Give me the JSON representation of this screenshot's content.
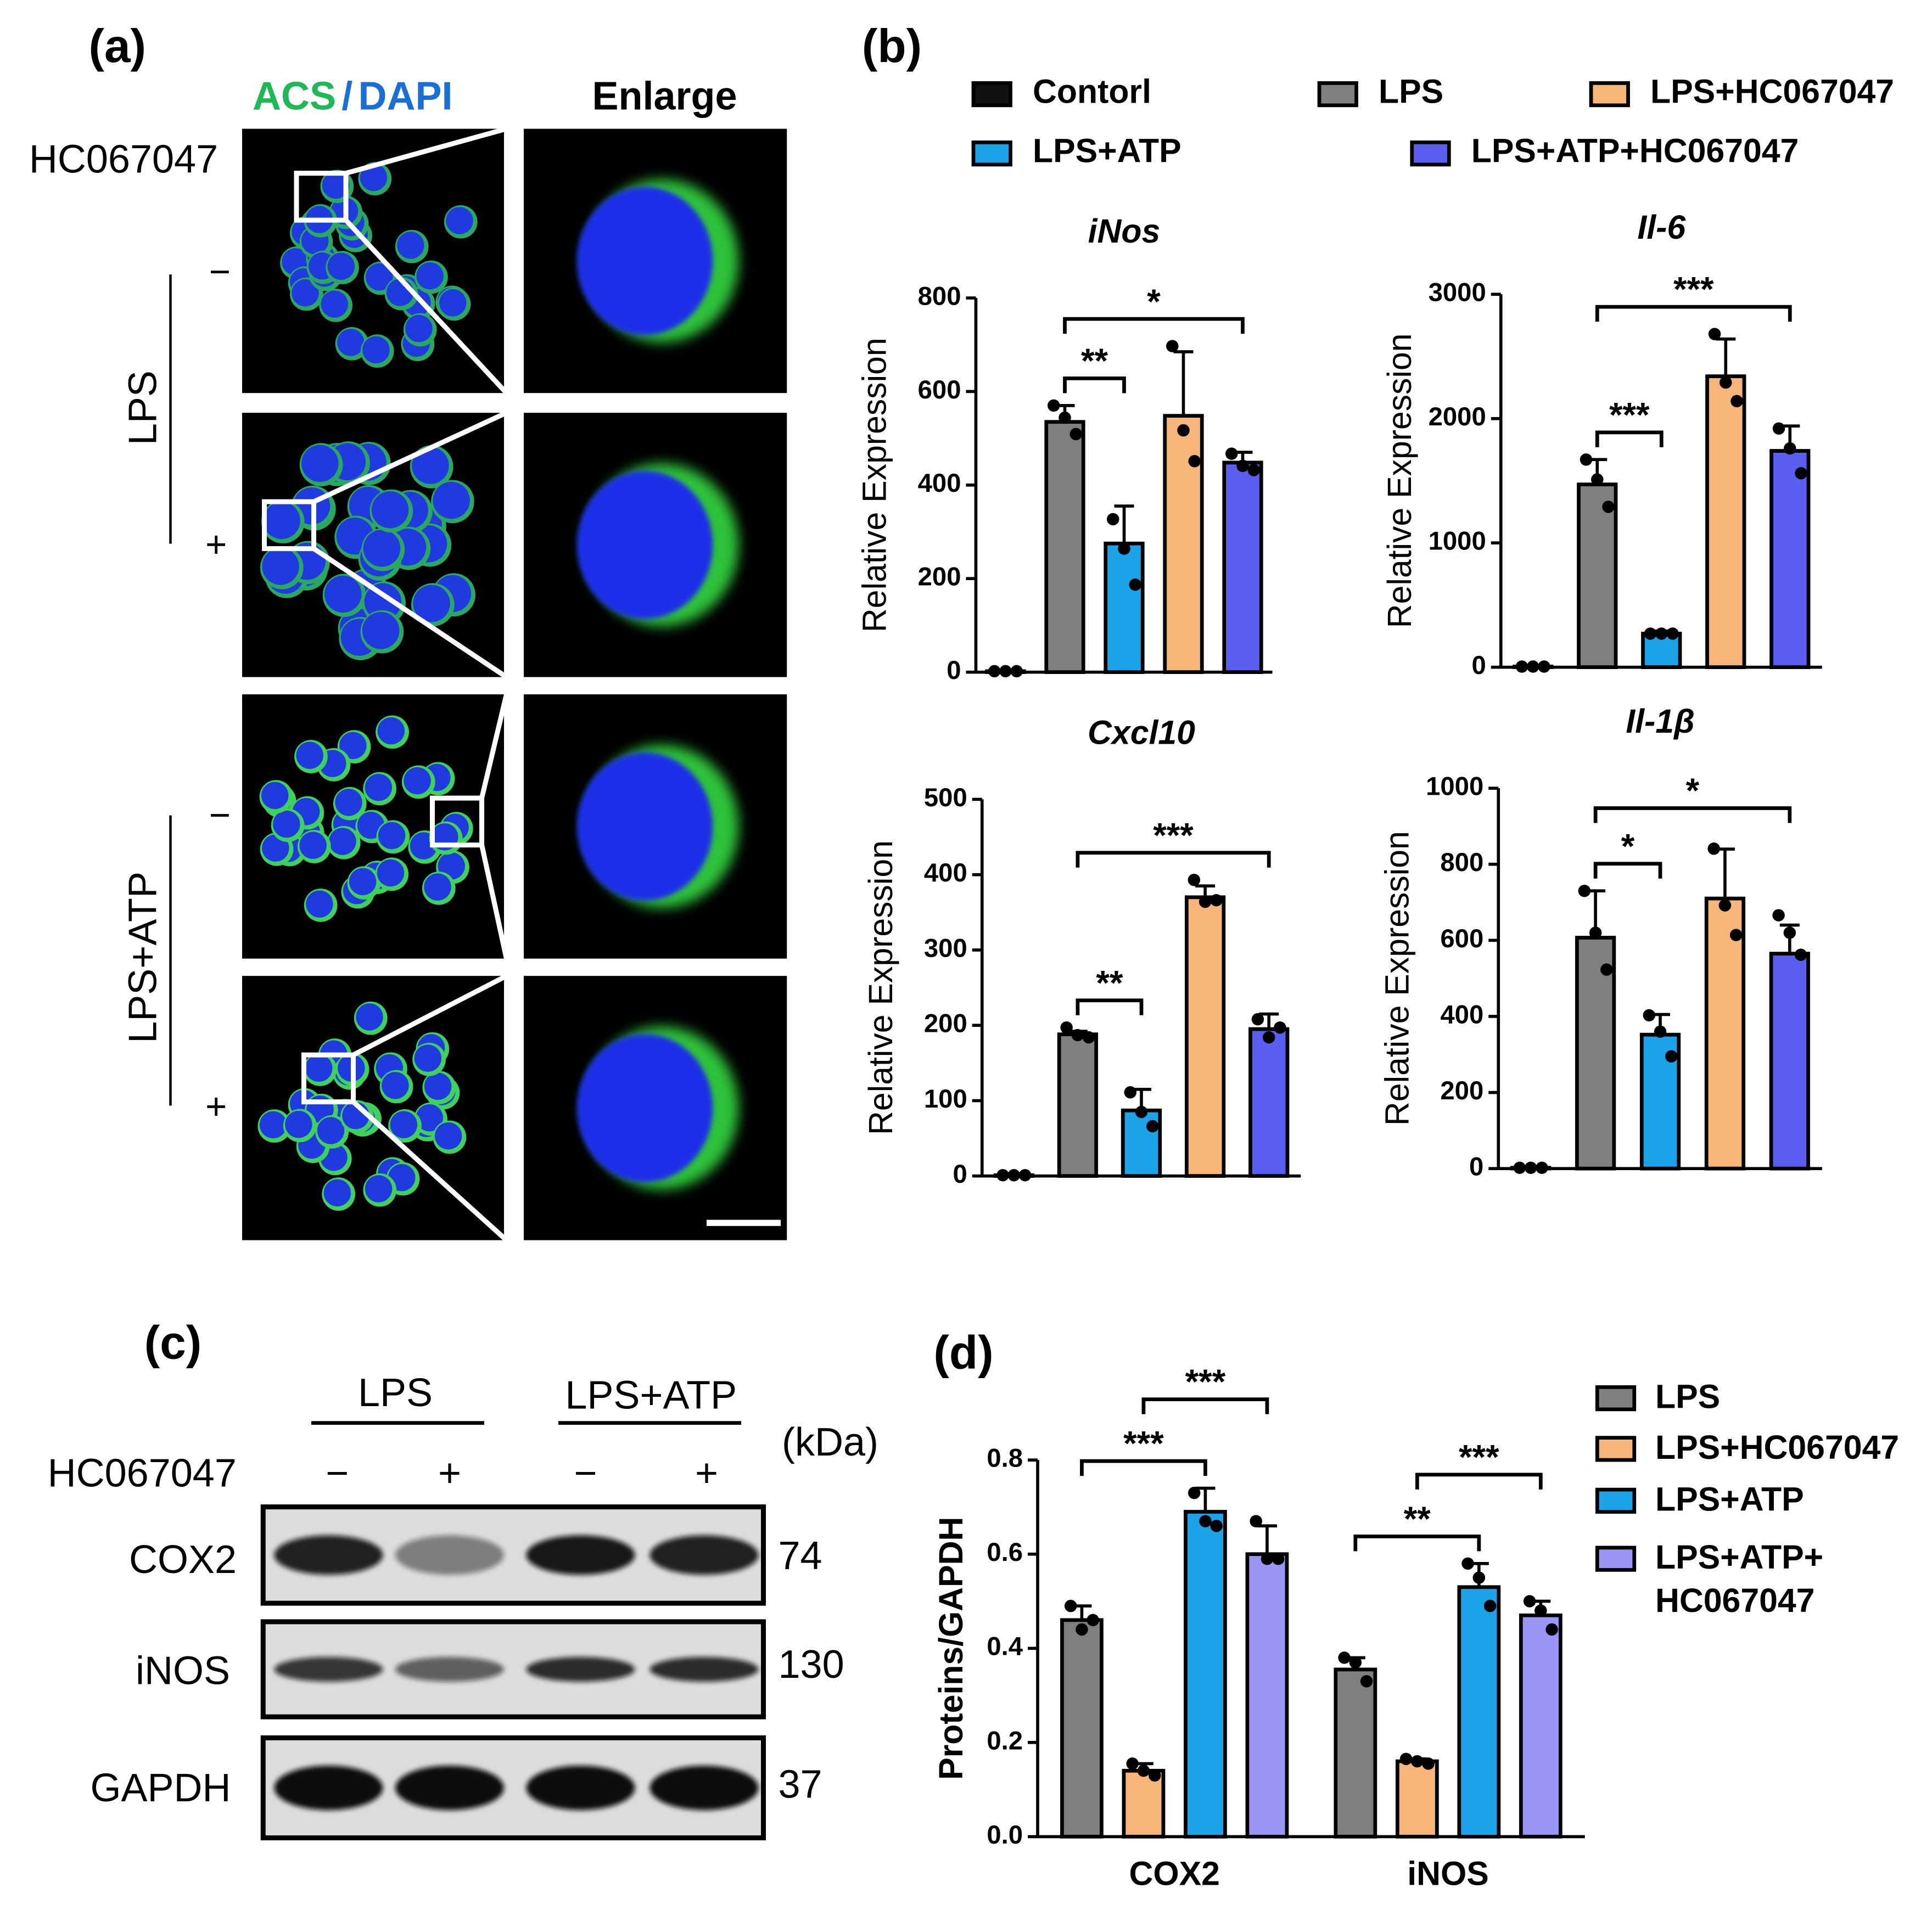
{
  "panel_a": {
    "label": "(a)",
    "stain_acs": "ACS",
    "stain_sep": "/",
    "stain_dapi": "DAPI",
    "enlarge": "Enlarge",
    "treatment": "HC067047",
    "signs": [
      "−",
      "+",
      "−",
      "+"
    ],
    "groups": [
      "LPS",
      "LPS+ATP"
    ]
  },
  "panel_b": {
    "label": "(b)",
    "legend": {
      "names": [
        "Contorl",
        "LPS",
        "LPS+ATP",
        "LPS+HC067047",
        "LPS+ATP+HC067047"
      ],
      "colors": [
        "#111111",
        "#7f7f7f",
        "#1aa3e8",
        "#f7b57a",
        "#5a5ef0"
      ],
      "order": [
        0,
        1,
        3,
        2,
        4
      ]
    }
  },
  "panel_c": {
    "label": "(c)",
    "groups": [
      "LPS",
      "LPS+ATP"
    ],
    "unit": "(kDa)",
    "treatment": "HC067047",
    "signs": [
      "−",
      "+",
      "−",
      "+"
    ],
    "proteins": [
      "COX2",
      "iNOS",
      "GAPDH"
    ],
    "kda": [
      74,
      130,
      37
    ]
  },
  "panel_d": {
    "label": "(d)"
  },
  "chart_data": [
    {
      "type": "bar",
      "title": "iNos",
      "y_label": "Relative Expression",
      "categories": [
        null,
        null,
        null,
        null,
        null
      ],
      "values": [
        2,
        535,
        275,
        548,
        448
      ],
      "errors": [
        null,
        35,
        80,
        137,
        22
      ],
      "points": [
        [
          2,
          2,
          2
        ],
        [
          570,
          544,
          509
        ],
        [
          327,
          264,
          187
        ],
        [
          697,
          517,
          451
        ],
        [
          467,
          441,
          432
        ]
      ],
      "ylim": [
        0,
        800
      ],
      "yticks": [
        0,
        200,
        400,
        600,
        800
      ],
      "annotations": [
        {
          "text": "**",
          "pair": [
            1,
            2
          ]
        },
        {
          "text": "*",
          "pair": [
            1,
            4
          ]
        }
      ]
    },
    {
      "type": "bar",
      "title": "Il-6",
      "y_label": "Relative Expression",
      "categories": [
        null,
        null,
        null,
        null,
        null
      ],
      "values": [
        5,
        1470,
        270,
        2340,
        1740
      ],
      "errors": [
        null,
        200,
        20,
        300,
        200
      ],
      "points": [
        [
          5,
          5,
          5
        ],
        [
          1670,
          1510,
          1290
        ],
        [
          270,
          270,
          270
        ],
        [
          2680,
          2290,
          2140
        ],
        [
          1920,
          1760,
          1560
        ]
      ],
      "ylim": [
        0,
        3000
      ],
      "yticks": [
        0,
        1000,
        2000,
        3000
      ],
      "annotations": [
        {
          "text": "***",
          "pair": [
            1,
            2
          ]
        },
        {
          "text": "***",
          "pair": [
            1,
            4
          ]
        }
      ]
    },
    {
      "type": "bar",
      "title": "Cxcl10",
      "y_label": "Relative Expression",
      "categories": [
        null,
        null,
        null,
        null,
        null
      ],
      "values": [
        1,
        188,
        87,
        370,
        195
      ],
      "errors": [
        null,
        4,
        28,
        15,
        20
      ],
      "points": [
        [
          1,
          1,
          1
        ],
        [
          197,
          187,
          184
        ],
        [
          111,
          85,
          66
        ],
        [
          393,
          364,
          366
        ],
        [
          208,
          184,
          197
        ]
      ],
      "ylim": [
        0,
        500
      ],
      "yticks": [
        0,
        100,
        200,
        300,
        400,
        500
      ],
      "annotations": [
        {
          "text": "**",
          "pair": [
            1,
            2
          ]
        },
        {
          "text": "***",
          "pair": [
            1,
            4
          ]
        }
      ]
    },
    {
      "type": "bar",
      "title": "Il-1β",
      "y_label": "Relative Expression",
      "categories": [
        null,
        null,
        null,
        null,
        null
      ],
      "values": [
        2,
        607,
        352,
        710,
        565
      ],
      "errors": [
        null,
        123,
        53,
        130,
        75
      ],
      "points": [
        [
          2,
          2,
          2
        ],
        [
          730,
          620,
          523
        ],
        [
          403,
          360,
          295
        ],
        [
          841,
          692,
          614
        ],
        [
          666,
          620,
          562
        ]
      ],
      "ylim": [
        0,
        1000
      ],
      "yticks": [
        0,
        200,
        400,
        600,
        800,
        1000
      ],
      "annotations": [
        {
          "text": "*",
          "pair": [
            1,
            2
          ]
        },
        {
          "text": "*",
          "pair": [
            1,
            4
          ]
        }
      ]
    },
    {
      "type": "grouped_bar",
      "y_label": "Proteins/GAPDH",
      "categories": [
        "COX2",
        "iNOS"
      ],
      "series": [
        {
          "name": "LPS",
          "color": "#7f7f7f",
          "values": [
            0.46,
            0.355
          ],
          "errors": [
            0.03,
            0.025
          ],
          "points": [
            [
              0.49,
              0.44,
              0.46
            ],
            [
              0.38,
              0.37,
              0.33
            ]
          ]
        },
        {
          "name": "LPS+HC067047",
          "color": "#f7b57a",
          "values": [
            0.14,
            0.16
          ],
          "errors": [
            0.015,
            0.005
          ],
          "points": [
            [
              0.155,
              0.14,
              0.13
            ],
            [
              0.165,
              0.16,
              0.155
            ]
          ]
        },
        {
          "name": "LPS+ATP",
          "color": "#1aa3e8",
          "values": [
            0.69,
            0.53
          ],
          "errors": [
            0.05,
            0.05
          ],
          "points": [
            [
              0.73,
              0.67,
              0.66
            ],
            [
              0.58,
              0.55,
              0.49
            ]
          ]
        },
        {
          "name": "LPS+ATP+\nHC067047",
          "color": "#9b96f5",
          "values": [
            0.6,
            0.47
          ],
          "errors": [
            0.06,
            0.03
          ],
          "points": [
            [
              0.67,
              0.59,
              0.59
            ],
            [
              0.5,
              0.48,
              0.44
            ]
          ]
        }
      ],
      "ylim": [
        0,
        0.8
      ],
      "yticks": [
        {
          "value": 0,
          "label": "0.0"
        },
        0.2,
        0.4,
        0.6,
        0.8
      ],
      "annotations": [
        {
          "text": "***",
          "category": 0,
          "pair": [
            0,
            2
          ]
        },
        {
          "text": "***",
          "category": 0,
          "pair": [
            1,
            3
          ]
        },
        {
          "text": "**",
          "category": 1,
          "pair": [
            0,
            2
          ]
        },
        {
          "text": "***",
          "category": 1,
          "pair": [
            1,
            3
          ]
        }
      ]
    }
  ]
}
